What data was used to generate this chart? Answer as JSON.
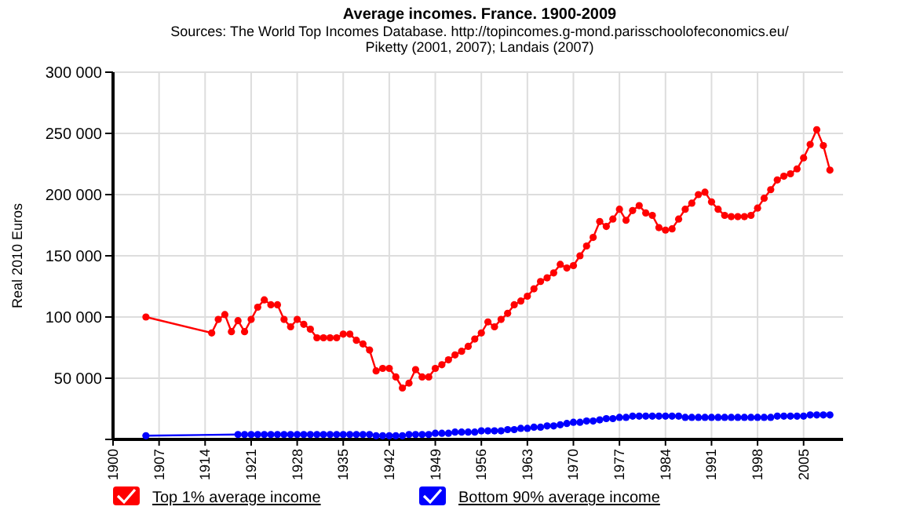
{
  "chart_data": {
    "type": "line",
    "title": "Average incomes. France. 1900-2009",
    "subtitle": "Sources: The World Top Incomes Database. http://topincomes.g-mond.parisschoolofeconomics.eu/\nPiketty (2001, 2007); Landais (2007)",
    "ylabel": "Real 2010 Euros",
    "xlim": [
      1900,
      2011
    ],
    "xticks": [
      1900,
      1907,
      1914,
      1921,
      1928,
      1935,
      1942,
      1949,
      1956,
      1963,
      1970,
      1977,
      1984,
      1991,
      1998,
      2005
    ],
    "ylim": [
      0,
      300000
    ],
    "yticks": [
      {
        "value": 0,
        "label": null
      },
      {
        "value": 50000,
        "label": "50 000"
      },
      {
        "value": 100000,
        "label": "100 000"
      },
      {
        "value": 150000,
        "label": "150 000"
      },
      {
        "value": 200000,
        "label": "200 000"
      },
      {
        "value": 250000,
        "label": "250 000"
      },
      {
        "value": 300000,
        "label": "300 000"
      }
    ],
    "grid": true,
    "legend": "bottom",
    "marker": "circle",
    "line_style": "solid",
    "series": [
      {
        "name": "Top 1% average income",
        "color": "#ff0000",
        "x": [
          1905,
          1915,
          1916,
          1917,
          1918,
          1919,
          1920,
          1921,
          1922,
          1923,
          1924,
          1925,
          1926,
          1927,
          1928,
          1929,
          1930,
          1931,
          1932,
          1933,
          1934,
          1935,
          1936,
          1937,
          1938,
          1939,
          1940,
          1941,
          1942,
          1943,
          1944,
          1945,
          1946,
          1947,
          1948,
          1949,
          1950,
          1951,
          1952,
          1953,
          1954,
          1955,
          1956,
          1957,
          1958,
          1959,
          1960,
          1961,
          1962,
          1963,
          1964,
          1965,
          1966,
          1967,
          1968,
          1969,
          1970,
          1971,
          1972,
          1973,
          1974,
          1975,
          1976,
          1977,
          1978,
          1979,
          1980,
          1981,
          1982,
          1983,
          1984,
          1985,
          1986,
          1987,
          1988,
          1989,
          1990,
          1991,
          1992,
          1993,
          1994,
          1995,
          1996,
          1997,
          1998,
          1999,
          2000,
          2001,
          2002,
          2003,
          2004,
          2005,
          2006,
          2007,
          2008,
          2009
        ],
        "values": [
          100000,
          87000,
          98000,
          102000,
          88000,
          97000,
          88000,
          98000,
          108000,
          114000,
          110000,
          110000,
          98000,
          92000,
          98000,
          94000,
          90000,
          83000,
          83000,
          83000,
          83000,
          86000,
          86000,
          81000,
          78000,
          73000,
          56000,
          58000,
          58000,
          51000,
          42000,
          46000,
          57000,
          51000,
          51000,
          58000,
          61000,
          65000,
          69000,
          72000,
          76000,
          82000,
          87000,
          96000,
          92000,
          98000,
          103000,
          110000,
          113000,
          117000,
          123000,
          129000,
          132000,
          136000,
          143000,
          140000,
          142000,
          150000,
          158000,
          165000,
          178000,
          174000,
          180000,
          188000,
          179000,
          187000,
          191000,
          185000,
          183000,
          173000,
          171000,
          172000,
          180000,
          188000,
          193000,
          200000,
          202000,
          194000,
          188000,
          183000,
          182000,
          182000,
          182000,
          183000,
          189000,
          197000,
          204000,
          212000,
          215000,
          217000,
          221000,
          230000,
          241000,
          253000,
          240000,
          220000
        ]
      },
      {
        "name": "Bottom 90% average income",
        "color": "#0000ff",
        "x": [
          1905,
          1919,
          1920,
          1921,
          1922,
          1923,
          1924,
          1925,
          1926,
          1927,
          1928,
          1929,
          1930,
          1931,
          1932,
          1933,
          1934,
          1935,
          1936,
          1937,
          1938,
          1939,
          1940,
          1941,
          1942,
          1943,
          1944,
          1945,
          1946,
          1947,
          1948,
          1949,
          1950,
          1951,
          1952,
          1953,
          1954,
          1955,
          1956,
          1957,
          1958,
          1959,
          1960,
          1961,
          1962,
          1963,
          1964,
          1965,
          1966,
          1967,
          1968,
          1969,
          1970,
          1971,
          1972,
          1973,
          1974,
          1975,
          1976,
          1977,
          1978,
          1979,
          1980,
          1981,
          1982,
          1983,
          1984,
          1985,
          1986,
          1987,
          1988,
          1989,
          1990,
          1991,
          1992,
          1993,
          1994,
          1995,
          1996,
          1997,
          1998,
          1999,
          2000,
          2001,
          2002,
          2003,
          2004,
          2005,
          2006,
          2007,
          2008,
          2009
        ],
        "values": [
          3000,
          4000,
          4000,
          4000,
          4000,
          4000,
          4000,
          4000,
          4000,
          4000,
          4000,
          4000,
          4000,
          4000,
          4000,
          4000,
          4000,
          4000,
          4000,
          4000,
          4000,
          4000,
          3000,
          3000,
          3000,
          3000,
          3000,
          4000,
          4000,
          4000,
          4000,
          5000,
          5000,
          5000,
          6000,
          6000,
          6000,
          6000,
          7000,
          7000,
          7000,
          7000,
          8000,
          8000,
          9000,
          9000,
          10000,
          10000,
          11000,
          11000,
          12000,
          13000,
          14000,
          14000,
          15000,
          15000,
          16000,
          17000,
          17000,
          18000,
          18000,
          19000,
          19000,
          19000,
          19000,
          19000,
          19000,
          19000,
          19000,
          18000,
          18000,
          18000,
          18000,
          18000,
          18000,
          18000,
          18000,
          18000,
          18000,
          18000,
          18000,
          18000,
          18000,
          19000,
          19000,
          19000,
          19000,
          19000,
          20000,
          20000,
          20000,
          20000
        ]
      }
    ]
  }
}
